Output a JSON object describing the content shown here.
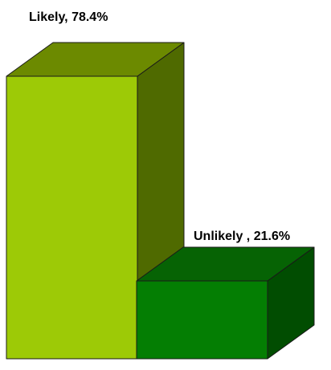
{
  "chart_data": {
    "type": "bar",
    "style": "3d",
    "title": "",
    "xlabel": "",
    "ylabel": "",
    "ylim": [
      0,
      78.4
    ],
    "grid": false,
    "legend": "none",
    "categories": [
      "Likely",
      "Unlikely"
    ],
    "values": [
      78.4,
      21.6
    ],
    "labels": [
      "Likely, 78.4%",
      "Unlikely , 21.6%"
    ],
    "colors": [
      {
        "front": "#9dca06",
        "top": "#6c8a00",
        "side": "#4f6a00"
      },
      {
        "front": "#047e03",
        "top": "#066304",
        "side": "#014d01"
      }
    ]
  }
}
